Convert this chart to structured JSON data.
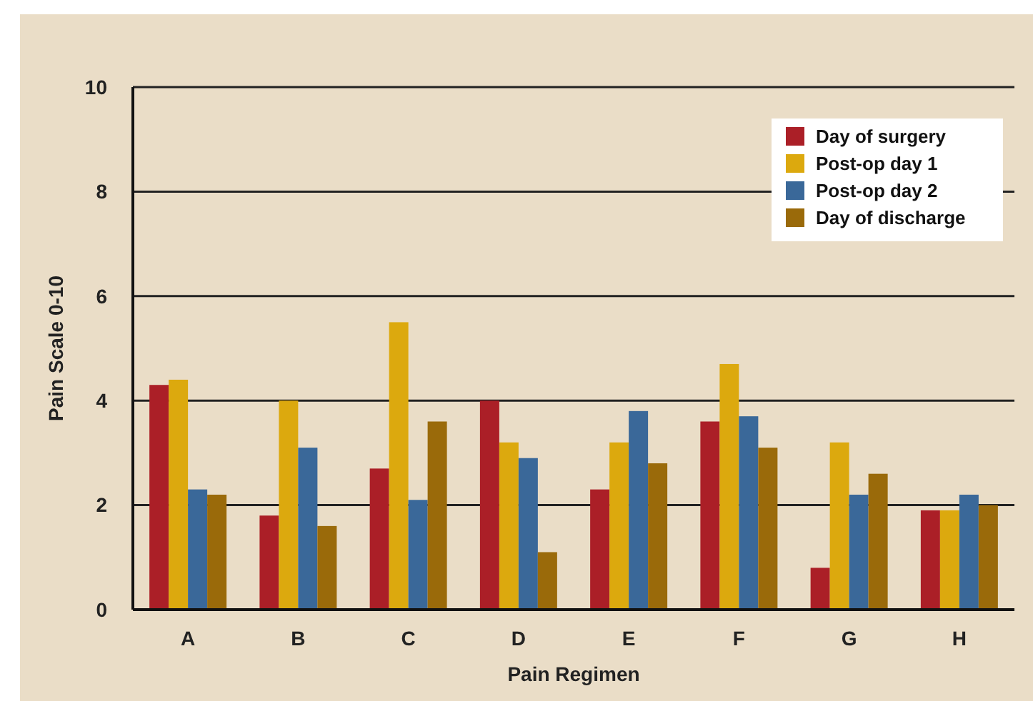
{
  "chart_data": {
    "type": "bar",
    "xlabel": "Pain Regimen",
    "ylabel": "Pain Scale 0-10",
    "categories": [
      "A",
      "B",
      "C",
      "D",
      "E",
      "F",
      "G",
      "H"
    ],
    "series": [
      {
        "name": "Day of surgery",
        "color": "#ab1f27",
        "values": [
          4.3,
          1.8,
          2.7,
          4.0,
          2.3,
          3.6,
          0.8,
          1.9
        ]
      },
      {
        "name": "Post-op day 1",
        "color": "#dca90e",
        "values": [
          4.4,
          4.0,
          5.5,
          3.2,
          3.2,
          4.7,
          3.2,
          1.9
        ]
      },
      {
        "name": "Post-op day 2",
        "color": "#3a6899",
        "values": [
          2.3,
          3.1,
          2.1,
          2.9,
          3.8,
          3.7,
          2.2,
          2.2
        ]
      },
      {
        "name": "Day of discharge",
        "color": "#9a6a0a",
        "values": [
          2.2,
          1.6,
          3.6,
          1.1,
          2.8,
          3.1,
          2.6,
          2.0
        ]
      }
    ],
    "ylim": [
      0,
      10
    ],
    "yticks": [
      0,
      2,
      4,
      6,
      8,
      10
    ],
    "grid": "y",
    "legend": "top right"
  }
}
